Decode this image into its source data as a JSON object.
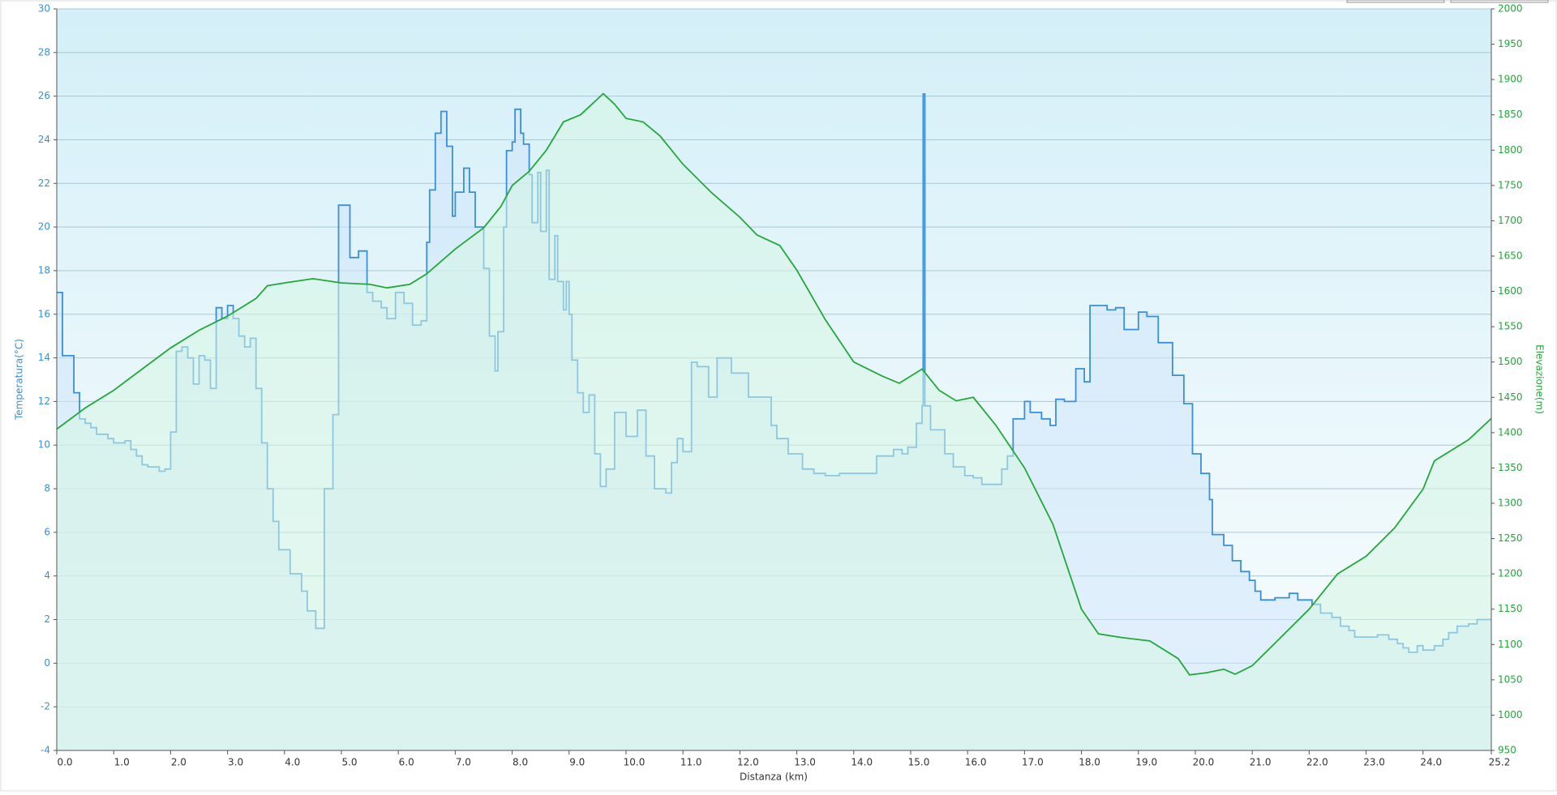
{
  "chart_data": {
    "type": "line",
    "x_label": "Distanza  (km)",
    "y_label": "Temperatura(°C)",
    "y2_label": "Elevazione(m)",
    "xlim": [
      0,
      25.2
    ],
    "xticks": [
      {
        "value": 0,
        "label": "0.0"
      },
      {
        "value": 1,
        "label": "1.0"
      },
      {
        "value": 2,
        "label": "2.0"
      },
      {
        "value": 3,
        "label": "3.0"
      },
      {
        "value": 4,
        "label": "4.0"
      },
      {
        "value": 5,
        "label": "5.0"
      },
      {
        "value": 6,
        "label": "6.0"
      },
      {
        "value": 7,
        "label": "7.0"
      },
      {
        "value": 8,
        "label": "8.0"
      },
      {
        "value": 9,
        "label": "9.0"
      },
      {
        "value": 10,
        "label": "10.0"
      },
      {
        "value": 11,
        "label": "11.0"
      },
      {
        "value": 12,
        "label": "12.0"
      },
      {
        "value": 13,
        "label": "13.0"
      },
      {
        "value": 14,
        "label": "14.0"
      },
      {
        "value": 15,
        "label": "15.0"
      },
      {
        "value": 16,
        "label": "16.0"
      },
      {
        "value": 17,
        "label": "17.0"
      },
      {
        "value": 18,
        "label": "18.0"
      },
      {
        "value": 19,
        "label": "19.0"
      },
      {
        "value": 20,
        "label": "20.0"
      },
      {
        "value": 21,
        "label": "21.0"
      },
      {
        "value": 22,
        "label": "22.0"
      },
      {
        "value": 23,
        "label": "23.0"
      },
      {
        "value": 24,
        "label": "24.0"
      },
      {
        "value": 25.2,
        "label": "25.2"
      }
    ],
    "ylim": [
      -4,
      30
    ],
    "yticks": [
      -4,
      -2,
      0,
      2,
      4,
      6,
      8,
      10,
      12,
      14,
      16,
      18,
      20,
      22,
      24,
      26,
      28,
      30
    ],
    "y2lim": [
      950,
      2000
    ],
    "y2ticks": [
      950,
      1000,
      1050,
      1100,
      1150,
      1200,
      1250,
      1300,
      1350,
      1400,
      1450,
      1500,
      1550,
      1600,
      1650,
      1700,
      1750,
      1800,
      1850,
      1900,
      1950,
      2000
    ],
    "grid": true,
    "series": [
      {
        "name": "Temperatura",
        "color": "#3a8fd9",
        "fill": "#cfe6fa",
        "step": true,
        "x": [
          0,
          0.1,
          0.3,
          0.4,
          0.5,
          0.6,
          0.7,
          0.9,
          1.0,
          1.2,
          1.3,
          1.4,
          1.5,
          1.6,
          1.8,
          1.9,
          2.0,
          2.1,
          2.2,
          2.3,
          2.4,
          2.5,
          2.6,
          2.7,
          2.8,
          2.9,
          3.0,
          3.1,
          3.2,
          3.3,
          3.4,
          3.5,
          3.6,
          3.7,
          3.8,
          3.9,
          4.1,
          4.3,
          4.4,
          4.55,
          4.7,
          4.85,
          4.95,
          5.05,
          5.15,
          5.3,
          5.45,
          5.55,
          5.7,
          5.8,
          5.95,
          6.1,
          6.25,
          6.4,
          6.5,
          6.55,
          6.65,
          6.75,
          6.85,
          6.95,
          7.0,
          7.15,
          7.25,
          7.35,
          7.5,
          7.6,
          7.7,
          7.75,
          7.85,
          7.9,
          8.0,
          8.05,
          8.15,
          8.2,
          8.3,
          8.35,
          8.45,
          8.5,
          8.6,
          8.65,
          8.75,
          8.8,
          8.9,
          8.95,
          9.0,
          9.05,
          9.15,
          9.25,
          9.35,
          9.45,
          9.55,
          9.65,
          9.8,
          10.0,
          10.2,
          10.35,
          10.5,
          10.7,
          10.8,
          10.9,
          11.0,
          11.15,
          11.25,
          11.45,
          11.6,
          11.85,
          12.15,
          12.55,
          12.65,
          12.85,
          13.1,
          13.3,
          13.5,
          13.75,
          14.4,
          14.7,
          14.85,
          14.95,
          15.1,
          15.2,
          15.22,
          15.25,
          15.35,
          15.6,
          15.75,
          15.95,
          16.1,
          16.25,
          16.6,
          16.7,
          16.8,
          17.0,
          17.1,
          17.3,
          17.45,
          17.55,
          17.7,
          17.9,
          18.05,
          18.15,
          18.45,
          18.6,
          18.75,
          19.0,
          19.15,
          19.35,
          19.6,
          19.8,
          19.95,
          20.1,
          20.25,
          20.3,
          20.5,
          20.65,
          20.8,
          20.95,
          21.05,
          21.15,
          21.4,
          21.65,
          21.8,
          22.05,
          22.2,
          22.4,
          22.55,
          22.7,
          22.8,
          23.2,
          23.4,
          23.55,
          23.65,
          23.75,
          23.9,
          24.0,
          24.2,
          24.35,
          24.45,
          24.6,
          24.8,
          24.95,
          25.2
        ],
        "values": [
          17,
          14.1,
          12.4,
          11.2,
          11,
          10.8,
          10.5,
          10.3,
          10.1,
          10.2,
          9.8,
          9.5,
          9.1,
          9.0,
          8.8,
          8.9,
          10.6,
          14.3,
          14.5,
          14.0,
          12.8,
          14.1,
          13.9,
          12.6,
          16.3,
          15.8,
          16.4,
          15.8,
          15,
          14.5,
          14.9,
          12.6,
          10.1,
          8,
          6.5,
          5.2,
          4.1,
          3.3,
          2.4,
          1.6,
          8,
          11.4,
          21,
          21,
          18.6,
          18.9,
          17,
          16.6,
          16.3,
          15.8,
          17,
          16.5,
          15.5,
          15.7,
          19.3,
          21.7,
          24.3,
          25.3,
          23.7,
          20.5,
          21.6,
          22.7,
          21.6,
          20,
          18.1,
          15,
          13.4,
          15.2,
          20,
          23.5,
          23.9,
          25.4,
          24.3,
          23.8,
          22.4,
          20.2,
          22.5,
          19.8,
          22.6,
          17.6,
          19.6,
          17.5,
          16.2,
          17.5,
          16,
          13.9,
          12.4,
          11.5,
          12.3,
          9.6,
          8.1,
          8.9,
          11.5,
          10.4,
          11.6,
          9.5,
          8,
          7.8,
          9.2,
          10.3,
          9.7,
          13.8,
          13.6,
          12.2,
          14,
          13.3,
          12.2,
          10.9,
          10.3,
          9.6,
          8.9,
          8.7,
          8.6,
          8.7,
          9.5,
          9.8,
          9.6,
          9.9,
          11,
          11.8,
          26.1,
          11.8,
          10.7,
          9.6,
          9.0,
          8.6,
          8.5,
          8.2,
          8.9,
          9.5,
          11.2,
          12,
          11.5,
          11.2,
          10.9,
          12.1,
          12,
          13.5,
          12.9,
          16.4,
          16.2,
          16.3,
          15.3,
          16.1,
          15.9,
          14.7,
          13.2,
          11.9,
          9.6,
          8.7,
          7.5,
          5.9,
          5.4,
          4.7,
          4.2,
          3.8,
          3.3,
          2.9,
          3.0,
          3.2,
          2.9,
          2.7,
          2.3,
          2.1,
          1.7,
          1.5,
          1.2,
          1.3,
          1.1,
          0.9,
          0.7,
          0.5,
          0.8,
          0.6,
          0.8,
          1.1,
          1.4,
          1.7,
          1.8,
          2.0,
          2.0
        ]
      },
      {
        "name": "Elevazione",
        "color": "#22a83a",
        "fill": "#d6f5e4",
        "axis": "y2",
        "x": [
          0,
          0.5,
          1.0,
          1.5,
          2.0,
          2.5,
          3.0,
          3.5,
          3.7,
          4.0,
          4.5,
          5.0,
          5.5,
          5.8,
          6.2,
          6.5,
          7.0,
          7.5,
          7.8,
          8.0,
          8.3,
          8.6,
          8.9,
          9.2,
          9.6,
          9.8,
          10.0,
          10.3,
          10.6,
          11.0,
          11.5,
          12.0,
          12.3,
          12.7,
          13.0,
          13.5,
          14.0,
          14.5,
          14.8,
          15.2,
          15.5,
          15.8,
          16.1,
          16.5,
          17.0,
          17.5,
          18.0,
          18.3,
          18.7,
          19.2,
          19.7,
          19.9,
          20.2,
          20.5,
          20.7,
          21.0,
          21.5,
          22.0,
          22.5,
          23.0,
          23.5,
          24.0,
          24.2,
          24.5,
          24.8,
          25.2
        ],
        "values": [
          1405,
          1435,
          1460,
          1490,
          1520,
          1545,
          1565,
          1590,
          1608,
          1612,
          1618,
          1612,
          1610,
          1605,
          1610,
          1625,
          1660,
          1690,
          1720,
          1750,
          1770,
          1800,
          1840,
          1850,
          1880,
          1865,
          1845,
          1840,
          1820,
          1780,
          1740,
          1705,
          1680,
          1665,
          1630,
          1560,
          1500,
          1480,
          1470,
          1490,
          1460,
          1445,
          1450,
          1410,
          1350,
          1270,
          1150,
          1115,
          1110,
          1105,
          1080,
          1057,
          1060,
          1065,
          1058,
          1070,
          1110,
          1150,
          1200,
          1225,
          1265,
          1320,
          1360,
          1375,
          1390,
          1420
        ]
      }
    ]
  }
}
